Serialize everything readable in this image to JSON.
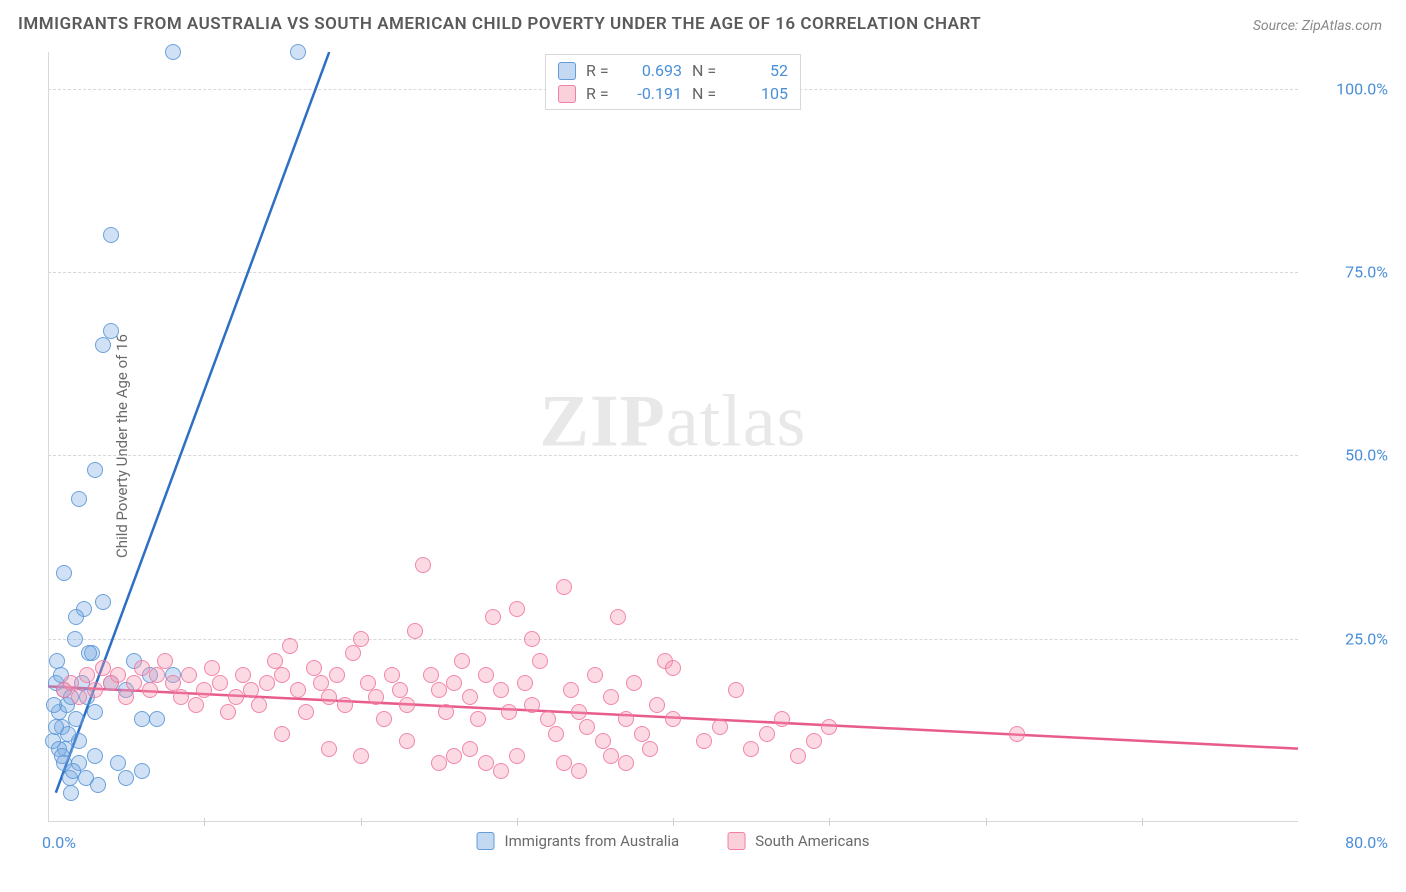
{
  "title": "IMMIGRANTS FROM AUSTRALIA VS SOUTH AMERICAN CHILD POVERTY UNDER THE AGE OF 16 CORRELATION CHART",
  "source": "Source: ZipAtlas.com",
  "ylabel": "Child Poverty Under the Age of 16",
  "watermark_bold": "ZIP",
  "watermark_rest": "atlas",
  "chart": {
    "type": "scatter",
    "xlim": [
      0,
      80
    ],
    "ylim": [
      0,
      105
    ],
    "y_ticks": [
      25,
      50,
      75,
      100
    ],
    "y_tick_labels": [
      "25.0%",
      "50.0%",
      "75.0%",
      "100.0%"
    ],
    "x_ticks": [
      10,
      20,
      30,
      40,
      50,
      60,
      70
    ],
    "x_min_label": "0.0%",
    "x_max_label": "80.0%",
    "grid_color": "#d8d8d8",
    "axis_label_color": "#4a8fd8",
    "background_color": "#ffffff"
  },
  "series": [
    {
      "name": "Immigrants from Australia",
      "color_fill": "rgba(120,170,225,0.35)",
      "color_stroke": "rgba(90,150,215,0.85)",
      "trend_color": "#2e6fc4",
      "trend_width": 2.5,
      "R": "0.693",
      "N": "52",
      "trend": {
        "x1": 0.5,
        "y1": 4,
        "x2": 18,
        "y2": 105
      },
      "points": [
        [
          0.5,
          19
        ],
        [
          0.6,
          22
        ],
        [
          0.8,
          20
        ],
        [
          1,
          18
        ],
        [
          0.7,
          15
        ],
        [
          1.2,
          16
        ],
        [
          1.5,
          17
        ],
        [
          0.9,
          13
        ],
        [
          1.3,
          12
        ],
        [
          1.8,
          14
        ],
        [
          2,
          11
        ],
        [
          1.1,
          10
        ],
        [
          0.4,
          16
        ],
        [
          2.2,
          19
        ],
        [
          2.5,
          17
        ],
        [
          3,
          15
        ],
        [
          1.7,
          25
        ],
        [
          2.8,
          23
        ],
        [
          4,
          19
        ],
        [
          3.5,
          30
        ],
        [
          1,
          8
        ],
        [
          1.4,
          6
        ],
        [
          2,
          8
        ],
        [
          3,
          9
        ],
        [
          5,
          18
        ],
        [
          5.5,
          22
        ],
        [
          6,
          14
        ],
        [
          6.5,
          20
        ],
        [
          1,
          34
        ],
        [
          2,
          44
        ],
        [
          3,
          48
        ],
        [
          3.5,
          65
        ],
        [
          4,
          67
        ],
        [
          4,
          80
        ],
        [
          8,
          105
        ],
        [
          16,
          105
        ],
        [
          0.3,
          11
        ],
        [
          0.5,
          13
        ],
        [
          0.7,
          10
        ],
        [
          0.9,
          9
        ],
        [
          1.6,
          7
        ],
        [
          2.4,
          6
        ],
        [
          3.2,
          5
        ],
        [
          4.5,
          8
        ],
        [
          5,
          6
        ],
        [
          6,
          7
        ],
        [
          7,
          14
        ],
        [
          8,
          20
        ],
        [
          1.5,
          4
        ],
        [
          2.3,
          29
        ],
        [
          2.6,
          23
        ],
        [
          1.8,
          28
        ]
      ]
    },
    {
      "name": "South Americans",
      "color_fill": "rgba(245,150,175,0.35)",
      "color_stroke": "rgba(240,120,160,0.85)",
      "trend_color": "#e85b8d",
      "trend_width": 2.5,
      "R": "-0.191",
      "N": "105",
      "trend": {
        "x1": 0,
        "y1": 18.5,
        "x2": 80,
        "y2": 10
      },
      "points": [
        [
          1,
          18
        ],
        [
          1.5,
          19
        ],
        [
          2,
          17
        ],
        [
          2.5,
          20
        ],
        [
          3,
          18
        ],
        [
          3.5,
          21
        ],
        [
          4,
          19
        ],
        [
          4.5,
          20
        ],
        [
          5,
          17
        ],
        [
          5.5,
          19
        ],
        [
          6,
          21
        ],
        [
          6.5,
          18
        ],
        [
          7,
          20
        ],
        [
          7.5,
          22
        ],
        [
          8,
          19
        ],
        [
          8.5,
          17
        ],
        [
          9,
          20
        ],
        [
          9.5,
          16
        ],
        [
          10,
          18
        ],
        [
          10.5,
          21
        ],
        [
          11,
          19
        ],
        [
          11.5,
          15
        ],
        [
          12,
          17
        ],
        [
          12.5,
          20
        ],
        [
          13,
          18
        ],
        [
          13.5,
          16
        ],
        [
          14,
          19
        ],
        [
          14.5,
          22
        ],
        [
          15,
          20
        ],
        [
          15.5,
          24
        ],
        [
          16,
          18
        ],
        [
          16.5,
          15
        ],
        [
          17,
          21
        ],
        [
          17.5,
          19
        ],
        [
          18,
          17
        ],
        [
          18.5,
          20
        ],
        [
          19,
          16
        ],
        [
          19.5,
          23
        ],
        [
          20,
          25
        ],
        [
          20.5,
          19
        ],
        [
          21,
          17
        ],
        [
          21.5,
          14
        ],
        [
          22,
          20
        ],
        [
          22.5,
          18
        ],
        [
          23,
          16
        ],
        [
          23.5,
          26
        ],
        [
          24,
          35
        ],
        [
          24.5,
          20
        ],
        [
          25,
          18
        ],
        [
          25.5,
          15
        ],
        [
          26,
          19
        ],
        [
          26.5,
          22
        ],
        [
          27,
          17
        ],
        [
          27.5,
          14
        ],
        [
          28,
          20
        ],
        [
          28.5,
          28
        ],
        [
          29,
          18
        ],
        [
          29.5,
          15
        ],
        [
          30,
          29
        ],
        [
          30.5,
          19
        ],
        [
          31,
          16
        ],
        [
          31.5,
          22
        ],
        [
          32,
          14
        ],
        [
          32.5,
          12
        ],
        [
          33,
          32
        ],
        [
          33.5,
          18
        ],
        [
          34,
          15
        ],
        [
          34.5,
          13
        ],
        [
          35,
          20
        ],
        [
          35.5,
          11
        ],
        [
          36,
          17
        ],
        [
          36.5,
          28
        ],
        [
          37,
          14
        ],
        [
          37.5,
          19
        ],
        [
          38,
          12
        ],
        [
          38.5,
          10
        ],
        [
          39,
          16
        ],
        [
          39.5,
          22
        ],
        [
          40,
          14
        ],
        [
          42,
          11
        ],
        [
          43,
          13
        ],
        [
          44,
          18
        ],
        [
          45,
          10
        ],
        [
          46,
          12
        ],
        [
          47,
          14
        ],
        [
          48,
          9
        ],
        [
          49,
          11
        ],
        [
          50,
          13
        ],
        [
          33,
          8
        ],
        [
          34,
          7
        ],
        [
          37,
          8
        ],
        [
          26,
          9
        ],
        [
          28,
          8
        ],
        [
          29,
          7
        ],
        [
          30,
          9
        ],
        [
          31,
          25
        ],
        [
          15,
          12
        ],
        [
          18,
          10
        ],
        [
          20,
          9
        ],
        [
          23,
          11
        ],
        [
          25,
          8
        ],
        [
          27,
          10
        ],
        [
          36,
          9
        ],
        [
          40,
          21
        ],
        [
          62,
          12
        ]
      ]
    }
  ],
  "legend_top": {
    "r_label": "R =",
    "n_label": "N ="
  },
  "legend_bottom": [
    "Immigrants from Australia",
    "South Americans"
  ]
}
